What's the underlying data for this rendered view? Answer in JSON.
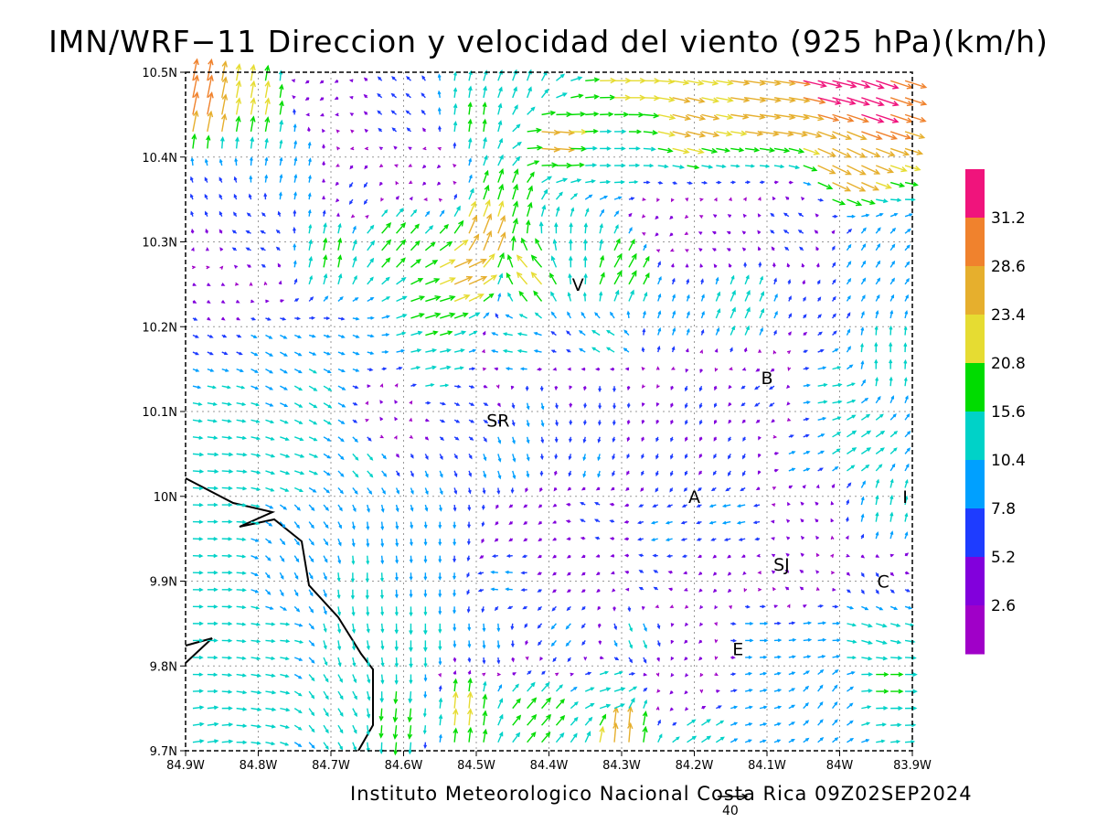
{
  "title": "IMN/WRF−11 Direccion y velocidad del viento (925 hPa)(km/h)",
  "credit": "Instituto Meteorologico Nacional Costa Rica 09Z02SEP2024",
  "reference_vector": {
    "label": "40",
    "speed": 40
  },
  "axes": {
    "lon_range": [
      -84.9,
      -83.9
    ],
    "lat_range": [
      9.7,
      10.5
    ],
    "x_ticks": [
      "84.9W",
      "84.8W",
      "84.7W",
      "84.6W",
      "84.5W",
      "84.4W",
      "84.3W",
      "84.2W",
      "84.1W",
      "84W",
      "83.9W"
    ],
    "y_ticks": [
      "9.7N",
      "9.8N",
      "9.9N",
      "10N",
      "10.1N",
      "10.2N",
      "10.3N",
      "10.4N",
      "10.5N"
    ],
    "grid": "dotted"
  },
  "places": [
    {
      "label": "SR",
      "lon": -84.47,
      "lat": 10.09
    },
    {
      "label": "V",
      "lon": -84.36,
      "lat": 10.25
    },
    {
      "label": "B",
      "lon": -84.1,
      "lat": 10.14
    },
    {
      "label": "A",
      "lon": -84.2,
      "lat": 10.0
    },
    {
      "label": "SJ",
      "lon": -84.08,
      "lat": 9.92
    },
    {
      "label": "C",
      "lon": -83.94,
      "lat": 9.9
    },
    {
      "label": "E",
      "lon": -84.14,
      "lat": 9.82
    },
    {
      "label": "I",
      "lon": -83.91,
      "lat": 10.0
    }
  ],
  "colorbar": {
    "labels": [
      "31.2",
      "28.6",
      "23.4",
      "20.8",
      "15.6",
      "10.4",
      "7.8",
      "5.2",
      "2.6"
    ],
    "colors_top_to_bottom": [
      "#f0147c",
      "#f0822d",
      "#e6af2d",
      "#e6dc32",
      "#00dc00",
      "#00d2c8",
      "#00a0ff",
      "#1e3cff",
      "#8200dc",
      "#a000c8"
    ],
    "thresholds": [
      2.6,
      5.2,
      7.8,
      10.4,
      15.6,
      20.8,
      23.4,
      28.6,
      31.2
    ]
  },
  "wind_field": {
    "grid_step_deg": 0.02,
    "vectors": [
      {
        "lon": -84.88,
        "lat": 10.46,
        "u": 6,
        "v": 30
      },
      {
        "lon": -84.8,
        "lat": 10.46,
        "u": 4,
        "v": 22
      },
      {
        "lon": -84.72,
        "lat": 10.48,
        "u": -4,
        "v": -3
      },
      {
        "lon": -84.6,
        "lat": 10.46,
        "u": -6,
        "v": 5
      },
      {
        "lon": -84.5,
        "lat": 10.44,
        "u": 2,
        "v": 16
      },
      {
        "lon": -84.44,
        "lat": 10.48,
        "u": 5,
        "v": 14
      },
      {
        "lon": -84.3,
        "lat": 10.49,
        "u": 22,
        "v": 0
      },
      {
        "lon": -84.1,
        "lat": 10.47,
        "u": 28,
        "v": -4
      },
      {
        "lon": -83.96,
        "lat": 10.47,
        "u": 30,
        "v": -10
      },
      {
        "lon": -84.02,
        "lat": 10.5,
        "u": 32,
        "v": -8
      },
      {
        "lon": -84.4,
        "lat": 10.42,
        "u": 24,
        "v": -2
      },
      {
        "lon": -84.32,
        "lat": 10.4,
        "u": 14,
        "v": 0
      },
      {
        "lon": -84.22,
        "lat": 10.44,
        "u": 24,
        "v": -6
      },
      {
        "lon": -84.0,
        "lat": 10.39,
        "u": 25,
        "v": -12
      },
      {
        "lon": -84.86,
        "lat": 10.36,
        "u": -3,
        "v": 6
      },
      {
        "lon": -84.76,
        "lat": 10.38,
        "u": 2,
        "v": 10
      },
      {
        "lon": -84.66,
        "lat": 10.36,
        "u": -4,
        "v": -6
      },
      {
        "lon": -84.56,
        "lat": 10.38,
        "u": -3,
        "v": -3
      },
      {
        "lon": -84.46,
        "lat": 10.34,
        "u": 6,
        "v": 20
      },
      {
        "lon": -84.49,
        "lat": 10.3,
        "u": 10,
        "v": 26
      },
      {
        "lon": -84.52,
        "lat": 10.26,
        "u": 24,
        "v": 10
      },
      {
        "lon": -84.56,
        "lat": 10.22,
        "u": 20,
        "v": 6
      },
      {
        "lon": -84.62,
        "lat": 10.3,
        "u": 12,
        "v": 14
      },
      {
        "lon": -84.7,
        "lat": 10.28,
        "u": 3,
        "v": 16
      },
      {
        "lon": -84.8,
        "lat": 10.3,
        "u": -6,
        "v": 3
      },
      {
        "lon": -84.86,
        "lat": 10.22,
        "u": 3,
        "v": -2
      },
      {
        "lon": -84.42,
        "lat": 10.26,
        "u": -14,
        "v": 16
      },
      {
        "lon": -84.36,
        "lat": 10.28,
        "u": 0,
        "v": 14
      },
      {
        "lon": -84.3,
        "lat": 10.26,
        "u": 10,
        "v": 18
      },
      {
        "lon": -84.24,
        "lat": 10.32,
        "u": -3,
        "v": -3
      },
      {
        "lon": -84.16,
        "lat": 10.3,
        "u": -4,
        "v": 2
      },
      {
        "lon": -84.06,
        "lat": 10.32,
        "u": -6,
        "v": 4
      },
      {
        "lon": -83.96,
        "lat": 10.28,
        "u": 5,
        "v": 8
      },
      {
        "lon": -84.14,
        "lat": 10.22,
        "u": 6,
        "v": 14
      },
      {
        "lon": -84.24,
        "lat": 10.2,
        "u": 3,
        "v": 9
      },
      {
        "lon": -84.32,
        "lat": 10.18,
        "u": -10,
        "v": 6
      },
      {
        "lon": -84.44,
        "lat": 10.18,
        "u": -12,
        "v": 2
      },
      {
        "lon": -84.56,
        "lat": 10.16,
        "u": 14,
        "v": 3
      },
      {
        "lon": -84.68,
        "lat": 10.18,
        "u": 8,
        "v": -3
      },
      {
        "lon": -84.78,
        "lat": 10.16,
        "u": 9,
        "v": -5
      },
      {
        "lon": -84.88,
        "lat": 10.18,
        "u": 7,
        "v": -3
      },
      {
        "lon": -83.94,
        "lat": 10.16,
        "u": 0,
        "v": 12
      },
      {
        "lon": -84.02,
        "lat": 10.12,
        "u": 12,
        "v": 2
      },
      {
        "lon": -84.1,
        "lat": 10.12,
        "u": -6,
        "v": -4
      },
      {
        "lon": -84.2,
        "lat": 10.12,
        "u": -2,
        "v": -6
      },
      {
        "lon": -84.32,
        "lat": 10.12,
        "u": 0,
        "v": -7
      },
      {
        "lon": -84.42,
        "lat": 10.1,
        "u": 2,
        "v": -8
      },
      {
        "lon": -84.52,
        "lat": 10.1,
        "u": 6,
        "v": -3
      },
      {
        "lon": -84.62,
        "lat": 10.1,
        "u": -2,
        "v": 3
      },
      {
        "lon": -84.72,
        "lat": 10.12,
        "u": 10,
        "v": -6
      },
      {
        "lon": -84.86,
        "lat": 10.1,
        "u": 12,
        "v": -2
      },
      {
        "lon": -83.98,
        "lat": 10.06,
        "u": 12,
        "v": 8
      },
      {
        "lon": -84.06,
        "lat": 10.04,
        "u": 8,
        "v": 3
      },
      {
        "lon": -84.14,
        "lat": 10.04,
        "u": -3,
        "v": -6
      },
      {
        "lon": -84.24,
        "lat": 10.04,
        "u": -2,
        "v": -6
      },
      {
        "lon": -84.34,
        "lat": 10.04,
        "u": -2,
        "v": -8
      },
      {
        "lon": -84.46,
        "lat": 10.04,
        "u": 3,
        "v": -10
      },
      {
        "lon": -84.56,
        "lat": 10.02,
        "u": 3,
        "v": -8
      },
      {
        "lon": -84.66,
        "lat": 10.04,
        "u": 7,
        "v": -8
      },
      {
        "lon": -84.76,
        "lat": 10.04,
        "u": 12,
        "v": -4
      },
      {
        "lon": -84.86,
        "lat": 10.04,
        "u": 14,
        "v": -1
      },
      {
        "lon": -83.94,
        "lat": 9.98,
        "u": 2,
        "v": 12
      },
      {
        "lon": -84.04,
        "lat": 9.98,
        "u": -3,
        "v": 3
      },
      {
        "lon": -84.14,
        "lat": 9.98,
        "u": -10,
        "v": -2
      },
      {
        "lon": -84.24,
        "lat": 9.96,
        "u": -8,
        "v": -2
      },
      {
        "lon": -84.34,
        "lat": 9.98,
        "u": -6,
        "v": 3
      },
      {
        "lon": -84.44,
        "lat": 9.98,
        "u": -4,
        "v": -3
      },
      {
        "lon": -84.54,
        "lat": 9.96,
        "u": 0,
        "v": -8
      },
      {
        "lon": -84.64,
        "lat": 9.96,
        "u": 1,
        "v": -10
      },
      {
        "lon": -84.74,
        "lat": 9.96,
        "u": 6,
        "v": -8
      },
      {
        "lon": -84.86,
        "lat": 9.98,
        "u": 13,
        "v": 0
      },
      {
        "lon": -83.96,
        "lat": 9.9,
        "u": 3,
        "v": -5
      },
      {
        "lon": -84.06,
        "lat": 9.9,
        "u": -4,
        "v": 3
      },
      {
        "lon": -84.16,
        "lat": 9.9,
        "u": -3,
        "v": -3
      },
      {
        "lon": -84.26,
        "lat": 9.9,
        "u": -5,
        "v": 3
      },
      {
        "lon": -84.36,
        "lat": 9.9,
        "u": -4,
        "v": -3
      },
      {
        "lon": -84.46,
        "lat": 9.9,
        "u": -9,
        "v": 1
      },
      {
        "lon": -84.56,
        "lat": 9.9,
        "u": 0,
        "v": -9
      },
      {
        "lon": -84.66,
        "lat": 9.9,
        "u": 0,
        "v": -12
      },
      {
        "lon": -84.76,
        "lat": 9.9,
        "u": 4,
        "v": -8
      },
      {
        "lon": -84.86,
        "lat": 9.9,
        "u": 13,
        "v": 0
      },
      {
        "lon": -83.96,
        "lat": 9.84,
        "u": 14,
        "v": -4
      },
      {
        "lon": -84.04,
        "lat": 9.84,
        "u": 10,
        "v": 1
      },
      {
        "lon": -84.12,
        "lat": 9.84,
        "u": 10,
        "v": 0
      },
      {
        "lon": -84.2,
        "lat": 9.82,
        "u": -3,
        "v": -3
      },
      {
        "lon": -84.28,
        "lat": 9.84,
        "u": 4,
        "v": -10
      },
      {
        "lon": -84.38,
        "lat": 9.84,
        "u": -6,
        "v": -7
      },
      {
        "lon": -84.48,
        "lat": 9.84,
        "u": 1,
        "v": -10
      },
      {
        "lon": -84.58,
        "lat": 9.84,
        "u": 0,
        "v": -14
      },
      {
        "lon": -84.68,
        "lat": 9.84,
        "u": 2,
        "v": -12
      },
      {
        "lon": -84.78,
        "lat": 9.84,
        "u": 12,
        "v": -1
      },
      {
        "lon": -84.88,
        "lat": 9.84,
        "u": 13,
        "v": 0
      },
      {
        "lon": -83.94,
        "lat": 9.78,
        "u": 16,
        "v": 0
      },
      {
        "lon": -84.02,
        "lat": 9.76,
        "u": 6,
        "v": 8
      },
      {
        "lon": -84.12,
        "lat": 9.76,
        "u": 9,
        "v": 2
      },
      {
        "lon": -84.22,
        "lat": 9.76,
        "u": -3,
        "v": -3
      },
      {
        "lon": -84.32,
        "lat": 9.76,
        "u": 14,
        "v": 4
      },
      {
        "lon": -84.42,
        "lat": 9.74,
        "u": 12,
        "v": 14
      },
      {
        "lon": -84.52,
        "lat": 9.74,
        "u": 2,
        "v": 22
      },
      {
        "lon": -84.6,
        "lat": 9.74,
        "u": -2,
        "v": -18
      },
      {
        "lon": -84.7,
        "lat": 9.76,
        "u": 6,
        "v": -10
      },
      {
        "lon": -84.8,
        "lat": 9.76,
        "u": 13,
        "v": -2
      },
      {
        "lon": -84.88,
        "lat": 9.72,
        "u": 14,
        "v": 2
      },
      {
        "lon": -84.3,
        "lat": 9.72,
        "u": 2,
        "v": 26
      },
      {
        "lon": -84.2,
        "lat": 9.72,
        "u": 12,
        "v": 8
      }
    ]
  }
}
